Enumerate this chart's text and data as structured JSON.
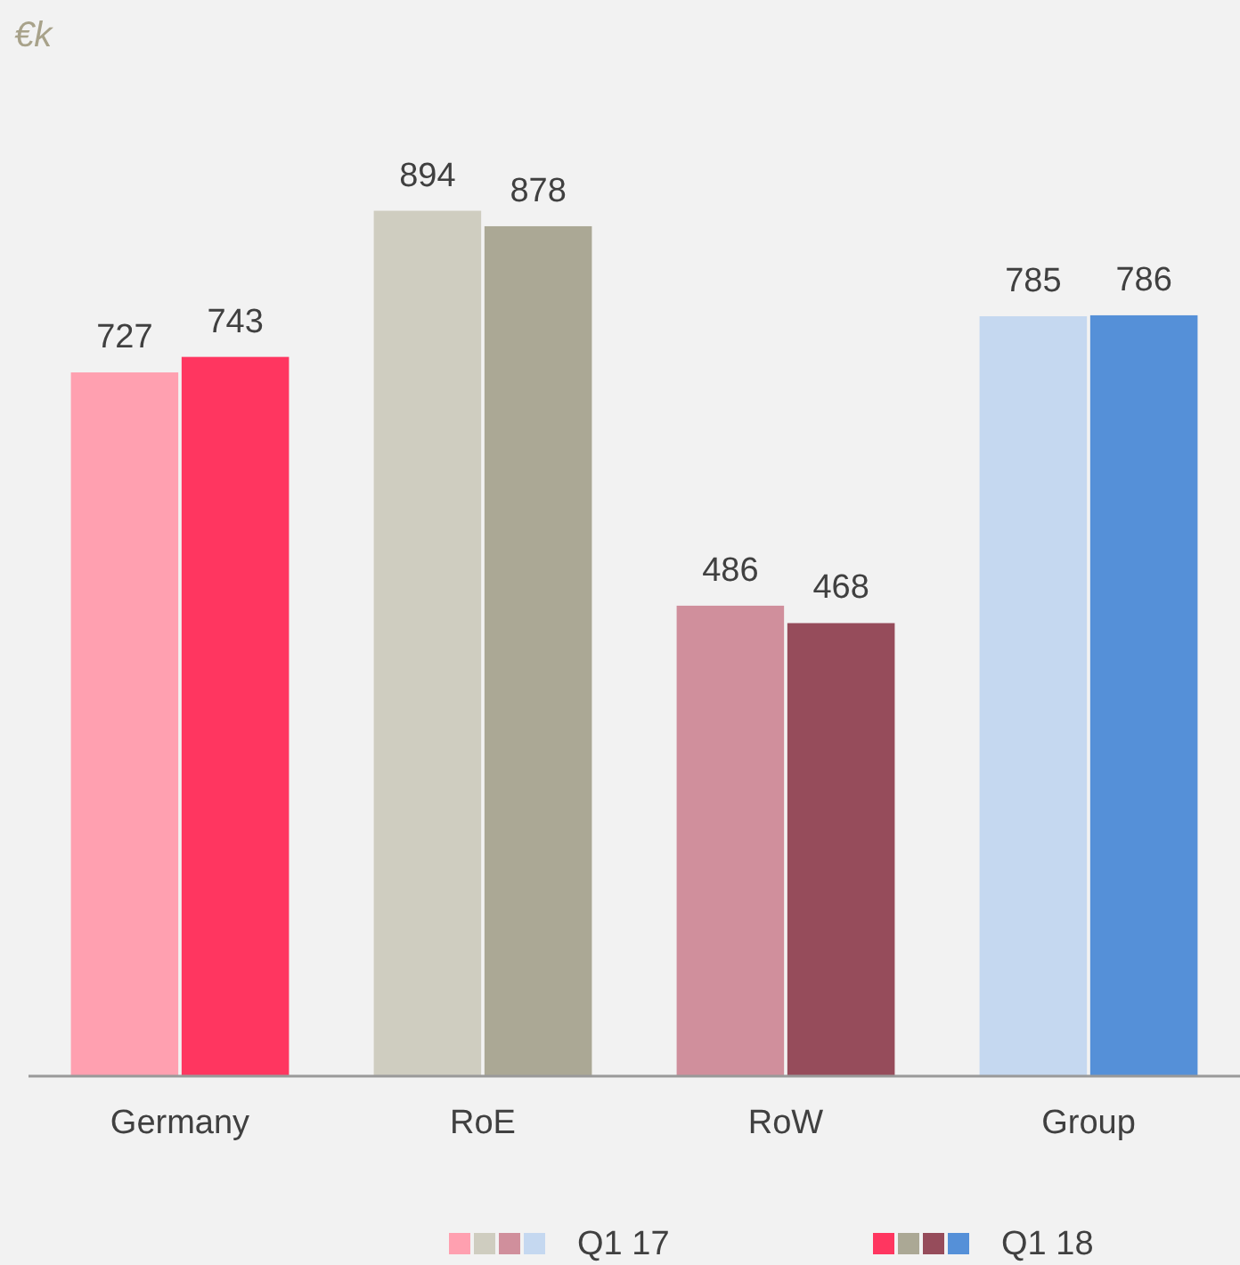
{
  "chart_data": {
    "type": "bar",
    "ylabel": "€k",
    "categories": [
      "Germany",
      "RoE",
      "RoW",
      "Group"
    ],
    "series": [
      {
        "name": "Q1 17",
        "colors": [
          "#ffa0b0",
          "#cfcdc0",
          "#d08f9c",
          "#c5d8f0"
        ],
        "values": [
          727,
          894,
          486,
          785
        ]
      },
      {
        "name": "Q1 18",
        "colors": [
          "#ff3660",
          "#aba895",
          "#964c5b",
          "#5590d8"
        ],
        "values": [
          743,
          878,
          468,
          786
        ]
      }
    ],
    "data_labels": true,
    "legend": "bottom",
    "grid": false
  }
}
